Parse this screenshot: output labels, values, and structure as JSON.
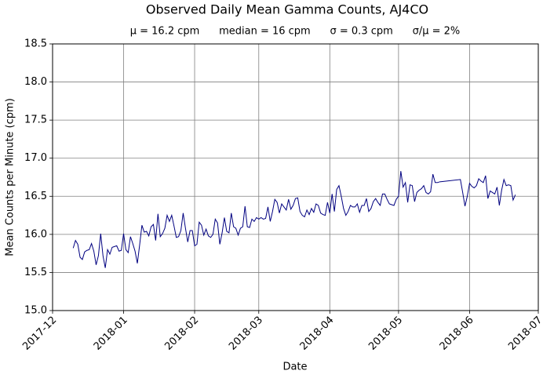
{
  "chart_data": {
    "type": "line",
    "title": "Observed Daily Mean Gamma Counts, AJ4CO",
    "subtitle": "μ = 16.2 cpm      median = 16 cpm      σ = 0.3 cpm      σ/μ = 2%",
    "xlabel": "Date",
    "ylabel": "Mean Counts per Minute (cpm)",
    "xlim": [
      "2017-12",
      "2018-07"
    ],
    "xticks": [
      "2017-12",
      "2018-01",
      "2018-02",
      "2018-03",
      "2018-04",
      "2018-05",
      "2018-06",
      "2018-07"
    ],
    "ylim": [
      15.0,
      18.5
    ],
    "yticks": [
      {
        "value": 15,
        "label": "15.0"
      },
      15.5,
      {
        "value": 16,
        "label": "16.0"
      },
      16.5,
      {
        "value": 17,
        "label": "17.0"
      },
      17.5,
      {
        "value": 18,
        "label": "18.0"
      },
      18.5
    ],
    "grid": true,
    "x": [
      "2017-12-10",
      "2017-12-11",
      "2017-12-12",
      "2017-12-13",
      "2017-12-14",
      "2017-12-15",
      "2017-12-16",
      "2017-12-17",
      "2017-12-18",
      "2017-12-19",
      "2017-12-20",
      "2017-12-21",
      "2017-12-22",
      "2017-12-23",
      "2017-12-24",
      "2017-12-25",
      "2017-12-26",
      "2017-12-27",
      "2017-12-28",
      "2017-12-29",
      "2017-12-30",
      "2017-12-31",
      "2018-01-01",
      "2018-01-02",
      "2018-01-03",
      "2018-01-04",
      "2018-01-05",
      "2018-01-06",
      "2018-01-07",
      "2018-01-08",
      "2018-01-09",
      "2018-01-10",
      "2018-01-11",
      "2018-01-12",
      "2018-01-13",
      "2018-01-14",
      "2018-01-15",
      "2018-01-16",
      "2018-01-17",
      "2018-01-18",
      "2018-01-19",
      "2018-01-20",
      "2018-01-21",
      "2018-01-22",
      "2018-01-23",
      "2018-01-24",
      "2018-01-25",
      "2018-01-26",
      "2018-01-27",
      "2018-01-28",
      "2018-01-29",
      "2018-01-30",
      "2018-01-31",
      "2018-02-01",
      "2018-02-02",
      "2018-02-03",
      "2018-02-04",
      "2018-02-05",
      "2018-02-06",
      "2018-02-07",
      "2018-02-08",
      "2018-02-09",
      "2018-02-10",
      "2018-02-11",
      "2018-02-12",
      "2018-02-13",
      "2018-02-14",
      "2018-02-15",
      "2018-02-16",
      "2018-02-17",
      "2018-02-18",
      "2018-02-19",
      "2018-02-20",
      "2018-02-21",
      "2018-02-22",
      "2018-02-23",
      "2018-02-24",
      "2018-02-25",
      "2018-02-26",
      "2018-02-27",
      "2018-02-28",
      "2018-03-01",
      "2018-03-02",
      "2018-03-03",
      "2018-03-04",
      "2018-03-05",
      "2018-03-06",
      "2018-03-07",
      "2018-03-08",
      "2018-03-09",
      "2018-03-10",
      "2018-03-11",
      "2018-03-12",
      "2018-03-13",
      "2018-03-14",
      "2018-03-15",
      "2018-03-16",
      "2018-03-17",
      "2018-03-18",
      "2018-03-19",
      "2018-03-20",
      "2018-03-21",
      "2018-03-22",
      "2018-03-23",
      "2018-03-24",
      "2018-03-25",
      "2018-03-26",
      "2018-03-27",
      "2018-03-28",
      "2018-03-29",
      "2018-03-30",
      "2018-03-31",
      "2018-04-01",
      "2018-04-02",
      "2018-04-03",
      "2018-04-04",
      "2018-04-05",
      "2018-04-06",
      "2018-04-07",
      "2018-04-08",
      "2018-04-09",
      "2018-04-10",
      "2018-04-11",
      "2018-04-12",
      "2018-04-13",
      "2018-04-14",
      "2018-04-15",
      "2018-04-16",
      "2018-04-17",
      "2018-04-18",
      "2018-04-19",
      "2018-04-20",
      "2018-04-21",
      "2018-04-22",
      "2018-04-23",
      "2018-04-24",
      "2018-04-25",
      "2018-04-26",
      "2018-04-27",
      "2018-04-28",
      "2018-04-29",
      "2018-04-30",
      "2018-05-01",
      "2018-05-02",
      "2018-05-03",
      "2018-05-04",
      "2018-05-05",
      "2018-05-06",
      "2018-05-07",
      "2018-05-08",
      "2018-05-09",
      "2018-05-10",
      "2018-05-11",
      "2018-05-12",
      "2018-05-13",
      "2018-05-14",
      "2018-05-15",
      "2018-05-16",
      "2018-05-17",
      "2018-05-18",
      "2018-05-19",
      "2018-05-28",
      "2018-05-29",
      "2018-05-30",
      "2018-05-31",
      "2018-06-01",
      "2018-06-02",
      "2018-06-03",
      "2018-06-04",
      "2018-06-05",
      "2018-06-06",
      "2018-06-07",
      "2018-06-08",
      "2018-06-09",
      "2018-06-10",
      "2018-06-11",
      "2018-06-12",
      "2018-06-13",
      "2018-06-14",
      "2018-06-15",
      "2018-06-16",
      "2018-06-17",
      "2018-06-18",
      "2018-06-19",
      "2018-06-20",
      "2018-06-21"
    ],
    "series": [
      {
        "name": "Daily mean",
        "color": "#000080",
        "values": [
          15.82,
          15.92,
          15.87,
          15.7,
          15.67,
          15.77,
          15.79,
          15.8,
          15.88,
          15.78,
          15.6,
          15.72,
          16.01,
          15.72,
          15.56,
          15.8,
          15.74,
          15.83,
          15.84,
          15.85,
          15.78,
          15.79,
          16.01,
          15.8,
          15.76,
          15.97,
          15.88,
          15.78,
          15.62,
          15.86,
          16.12,
          16.03,
          16.04,
          15.98,
          16.1,
          16.13,
          15.92,
          16.27,
          15.97,
          16.01,
          16.08,
          16.25,
          16.17,
          16.25,
          16.11,
          15.96,
          15.97,
          16.05,
          16.28,
          16.08,
          15.9,
          16.05,
          16.05,
          15.85,
          15.87,
          16.16,
          16.12,
          15.99,
          16.07,
          15.98,
          15.96,
          16.0,
          16.2,
          16.15,
          15.87,
          16.02,
          16.22,
          16.04,
          16.02,
          16.28,
          16.1,
          16.08,
          15.99,
          16.08,
          16.1,
          16.37,
          16.1,
          16.09,
          16.2,
          16.17,
          16.22,
          16.2,
          16.22,
          16.2,
          16.21,
          16.36,
          16.17,
          16.3,
          16.46,
          16.42,
          16.28,
          16.4,
          16.36,
          16.32,
          16.46,
          16.33,
          16.38,
          16.47,
          16.48,
          16.3,
          16.25,
          16.23,
          16.32,
          16.26,
          16.34,
          16.29,
          16.4,
          16.38,
          16.28,
          16.26,
          16.25,
          16.42,
          16.28,
          16.53,
          16.3,
          16.59,
          16.64,
          16.5,
          16.34,
          16.25,
          16.3,
          16.38,
          16.36,
          16.36,
          16.4,
          16.29,
          16.38,
          16.38,
          16.47,
          16.3,
          16.34,
          16.43,
          16.47,
          16.42,
          16.38,
          16.53,
          16.53,
          16.46,
          16.4,
          16.39,
          16.38,
          16.46,
          16.5,
          16.83,
          16.62,
          16.68,
          16.42,
          16.65,
          16.64,
          16.43,
          16.55,
          16.58,
          16.6,
          16.64,
          16.55,
          16.53,
          16.56,
          16.79,
          16.68,
          16.68,
          16.69,
          16.72,
          16.55,
          16.37,
          16.5,
          16.67,
          16.63,
          16.61,
          16.64,
          16.73,
          16.7,
          16.68,
          16.77,
          16.47,
          16.57,
          16.55,
          16.53,
          16.62,
          16.38,
          16.58,
          16.72,
          16.64,
          16.65,
          16.64,
          16.45,
          16.52
        ]
      }
    ]
  }
}
